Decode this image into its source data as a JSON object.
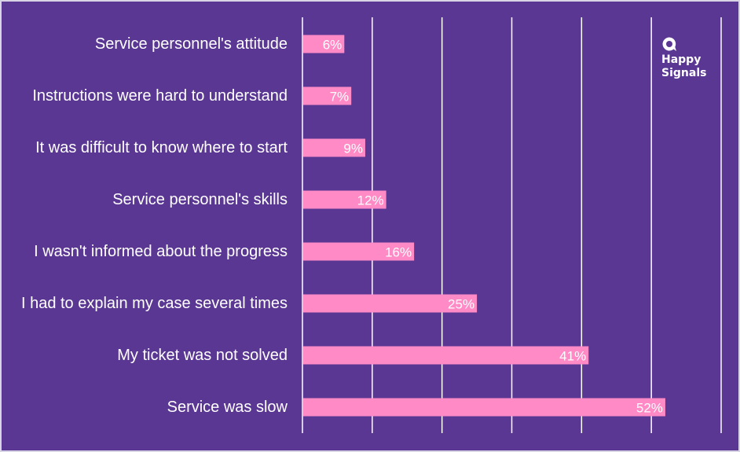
{
  "chart_data": {
    "type": "bar",
    "orientation": "horizontal",
    "categories": [
      "Service personnel's attitude",
      "Instructions were hard to understand",
      "It was difficult to know where to start",
      "Service personnel's skills",
      "I wasn't informed about the progress",
      "I had to explain my case several times",
      "My ticket was not solved",
      "Service was slow"
    ],
    "values": [
      6,
      7,
      9,
      12,
      16,
      25,
      41,
      52
    ],
    "value_labels": [
      "6%",
      "7%",
      "9%",
      "12%",
      "16%",
      "25%",
      "41%",
      "52%"
    ],
    "xlim": [
      0,
      60
    ],
    "grid": true,
    "bar_color": "#ff8ac6",
    "background_color": "#5b3794"
  },
  "logo": {
    "line1": "Happy",
    "line2": "Signals"
  }
}
